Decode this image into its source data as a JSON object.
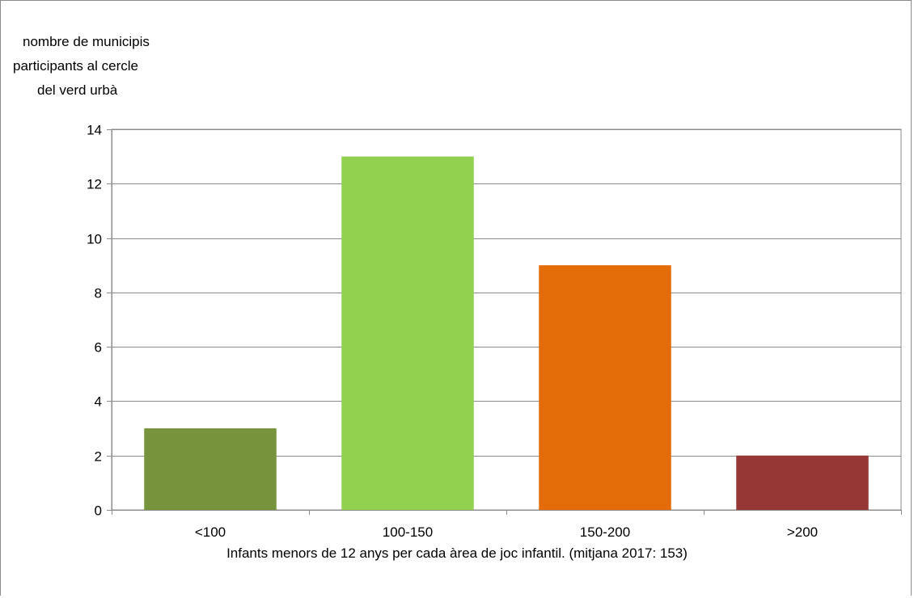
{
  "chart_data": {
    "type": "bar",
    "categories": [
      "<100",
      "100-150",
      "150-200",
      ">200"
    ],
    "values": [
      3,
      13,
      9,
      2
    ],
    "colors": [
      "#77933c",
      "#92d050",
      "#e36c09",
      "#953735"
    ],
    "ylabel_lines": [
      "nombre de municipis",
      "participants al cercle",
      "del verd urbà"
    ],
    "xlabel": "Infants menors de 12 anys per cada àrea de joc infantil. (mitjana 2017: 153)",
    "ylim": [
      0,
      14
    ],
    "yticks": [
      0,
      2,
      4,
      6,
      8,
      10,
      12,
      14
    ],
    "grid": true,
    "legend": "none",
    "gridline_color": "#8c8c8c"
  }
}
